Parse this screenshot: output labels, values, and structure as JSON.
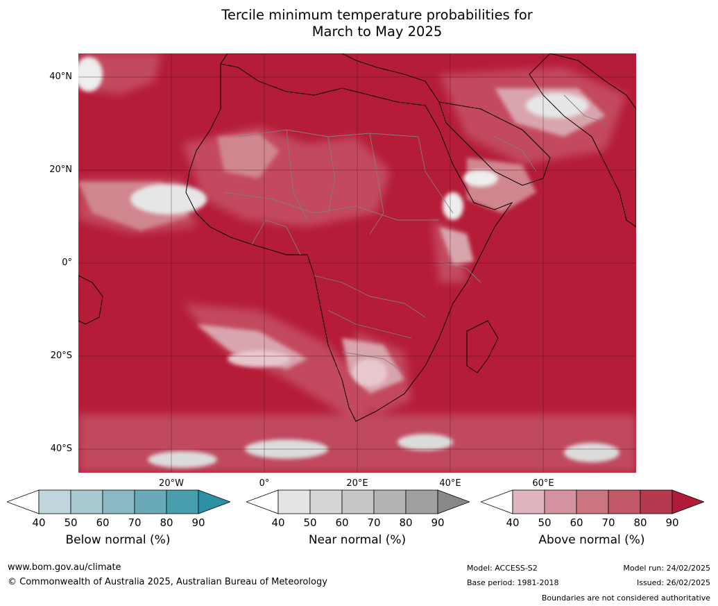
{
  "title": {
    "line1": "Tercile minimum temperature probabilities for",
    "line2": "March to May 2025"
  },
  "map": {
    "background_color": "#b51c38",
    "land_outline_color": "#000000",
    "border_color": "#808080",
    "latitude_labels": [
      "40°N",
      "20°N",
      "0°",
      "20°S",
      "40°S"
    ],
    "longitude_labels": [
      "20°W",
      "0°",
      "20°E",
      "40°E",
      "60°E"
    ]
  },
  "colorbars": [
    {
      "name": "Below normal (%)",
      "ticks": [
        "40",
        "50",
        "60",
        "70",
        "80",
        "90"
      ],
      "colors": [
        "#ffffff",
        "#bed6dc",
        "#a8c9d0",
        "#8ab8c3",
        "#6aaab8",
        "#489ead",
        "#2d91a6"
      ]
    },
    {
      "name": "Near normal (%)",
      "ticks": [
        "40",
        "50",
        "60",
        "70",
        "80",
        "90"
      ],
      "colors": [
        "#ffffff",
        "#e4e4e4",
        "#d6d6d6",
        "#c6c6c6",
        "#b4b4b4",
        "#a0a0a0",
        "#888888"
      ]
    },
    {
      "name": "Above normal (%)",
      "ticks": [
        "40",
        "50",
        "60",
        "70",
        "80",
        "90"
      ],
      "colors": [
        "#ffffff",
        "#e0b4bc",
        "#d4939e",
        "#ca7580",
        "#c05868",
        "#b6394f",
        "#b01c38"
      ]
    }
  ],
  "footer": {
    "url": "www.bom.gov.au/climate",
    "copyright": "© Commonwealth of Australia 2025, Australian Bureau of Meteorology",
    "model": "Model: ACCESS-S2",
    "base_period": "Base period: 1981-2018",
    "model_run": "Model run: 24/02/2025",
    "issued": "Issued: 26/02/2025",
    "disclaimer": "Boundaries are not considered authoritative"
  }
}
